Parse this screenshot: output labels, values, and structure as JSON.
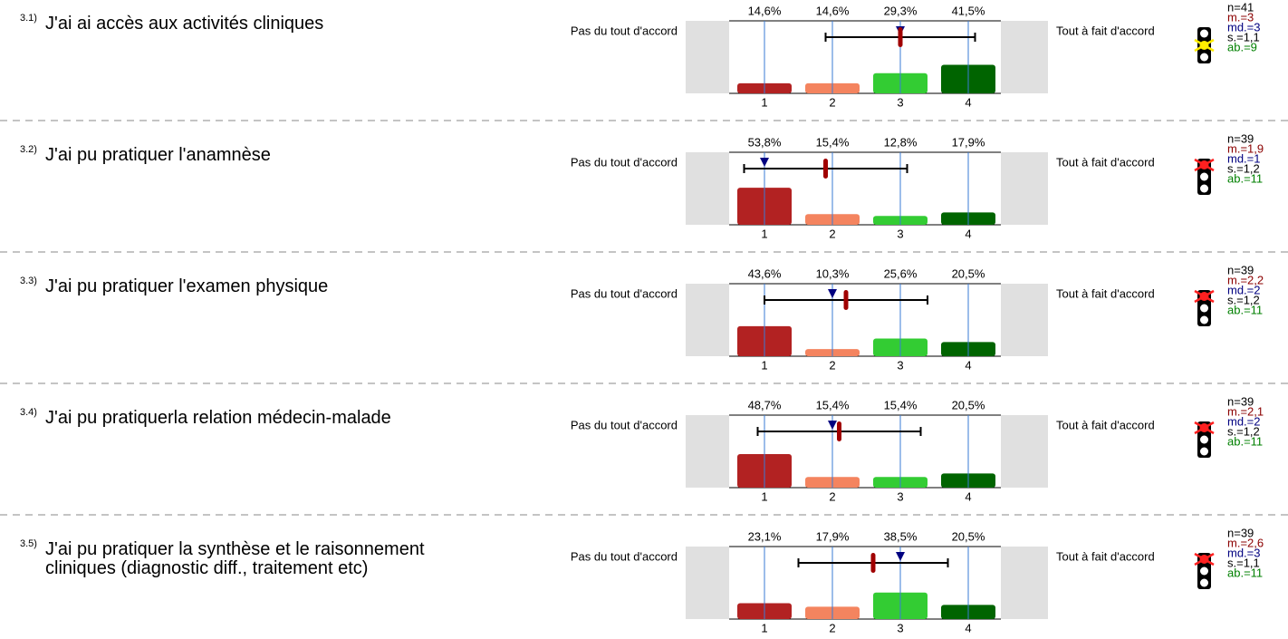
{
  "items": [
    {
      "number": "3.1)",
      "question": "J'ai ai accès aux activités cliniques",
      "left_label": "Pas du tout d'accord",
      "right_label": "Tout à fait d'accord",
      "categories": [
        "1",
        "2",
        "3",
        "4"
      ],
      "values": [
        14.6,
        14.6,
        29.3,
        41.5
      ],
      "value_labels": [
        "14,6%",
        "14,6%",
        "29,3%",
        "41,5%"
      ],
      "stats": {
        "n": {
          "value": 41,
          "label": "n=41"
        },
        "mean": {
          "value": 3,
          "label": "m.=3"
        },
        "median": {
          "value": 3,
          "label": "md.=3"
        },
        "sd": {
          "value": 1.1,
          "label": "s.=1,1"
        },
        "abstentions": {
          "value": 9,
          "label": "ab.=9"
        }
      },
      "traffic_light": "yellow"
    },
    {
      "number": "3.2)",
      "question": "J'ai pu pratiquer l'anamnèse",
      "left_label": "Pas du tout d'accord",
      "right_label": "Tout à fait d'accord",
      "categories": [
        "1",
        "2",
        "3",
        "4"
      ],
      "values": [
        53.8,
        15.4,
        12.8,
        17.9
      ],
      "value_labels": [
        "53,8%",
        "15,4%",
        "12,8%",
        "17,9%"
      ],
      "stats": {
        "n": {
          "value": 39,
          "label": "n=39"
        },
        "mean": {
          "value": 1.9,
          "label": "m.=1,9"
        },
        "median": {
          "value": 1,
          "label": "md.=1"
        },
        "sd": {
          "value": 1.2,
          "label": "s.=1,2"
        },
        "abstentions": {
          "value": 11,
          "label": "ab.=11"
        }
      },
      "traffic_light": "red"
    },
    {
      "number": "3.3)",
      "question": "J'ai pu pratiquer l'examen physique",
      "left_label": "Pas du tout d'accord",
      "right_label": "Tout à fait d'accord",
      "categories": [
        "1",
        "2",
        "3",
        "4"
      ],
      "values": [
        43.6,
        10.3,
        25.6,
        20.5
      ],
      "value_labels": [
        "43,6%",
        "10,3%",
        "25,6%",
        "20,5%"
      ],
      "stats": {
        "n": {
          "value": 39,
          "label": "n=39"
        },
        "mean": {
          "value": 2.2,
          "label": "m.=2,2"
        },
        "median": {
          "value": 2,
          "label": "md.=2"
        },
        "sd": {
          "value": 1.2,
          "label": "s.=1,2"
        },
        "abstentions": {
          "value": 11,
          "label": "ab.=11"
        }
      },
      "traffic_light": "red"
    },
    {
      "number": "3.4)",
      "question": "J'ai pu pratiquerla relation médecin-malade",
      "left_label": "Pas du tout d'accord",
      "right_label": "Tout à fait d'accord",
      "categories": [
        "1",
        "2",
        "3",
        "4"
      ],
      "values": [
        48.7,
        15.4,
        15.4,
        20.5
      ],
      "value_labels": [
        "48,7%",
        "15,4%",
        "15,4%",
        "20,5%"
      ],
      "stats": {
        "n": {
          "value": 39,
          "label": "n=39"
        },
        "mean": {
          "value": 2.1,
          "label": "m.=2,1"
        },
        "median": {
          "value": 2,
          "label": "md.=2"
        },
        "sd": {
          "value": 1.2,
          "label": "s.=1,2"
        },
        "abstentions": {
          "value": 11,
          "label": "ab.=11"
        }
      },
      "traffic_light": "red"
    },
    {
      "number": "3.5)",
      "question": "J'ai pu pratiquer la synthèse et le raisonnement cliniques (diagnostic diff., traitement etc)",
      "left_label": "Pas du tout d'accord",
      "right_label": "Tout à fait d'accord",
      "categories": [
        "1",
        "2",
        "3",
        "4"
      ],
      "values": [
        23.1,
        17.9,
        38.5,
        20.5
      ],
      "value_labels": [
        "23,1%",
        "17,9%",
        "38,5%",
        "20,5%"
      ],
      "stats": {
        "n": {
          "value": 39,
          "label": "n=39"
        },
        "mean": {
          "value": 2.6,
          "label": "m.=2,6"
        },
        "median": {
          "value": 3,
          "label": "md.=3"
        },
        "sd": {
          "value": 1.1,
          "label": "s.=1,1"
        },
        "abstentions": {
          "value": 11,
          "label": "ab.=11"
        }
      },
      "traffic_light": "red"
    }
  ],
  "colors": [
    "#b22222",
    "#f4845f",
    "#33cc33",
    "#006400"
  ]
}
